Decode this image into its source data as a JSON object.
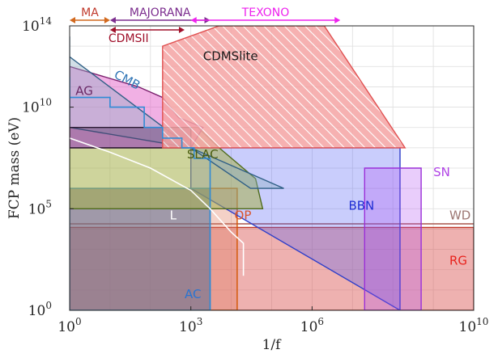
{
  "chart_data": {
    "type": "area",
    "title": "",
    "xlabel": "1/f",
    "ylabel": "FCP mass (eV)",
    "x_scale": "log",
    "y_scale": "log",
    "xlim": [
      1,
      10000000000
    ],
    "ylim": [
      1,
      100000000000000
    ],
    "grid": true,
    "x_ticks": [
      {
        "value": 1,
        "mantissa": "10",
        "exp": "0"
      },
      {
        "value": 1000,
        "mantissa": "10",
        "exp": "3"
      },
      {
        "value": 1000000,
        "mantissa": "10",
        "exp": "6"
      },
      {
        "value": 10000000000,
        "mantissa": "10",
        "exp": "10"
      }
    ],
    "y_ticks": [
      {
        "value": 1,
        "mantissa": "10",
        "exp": "0"
      },
      {
        "value": 100000,
        "mantissa": "10",
        "exp": "5"
      },
      {
        "value": 10000000000,
        "mantissa": "10",
        "exp": "10"
      },
      {
        "value": 100000000000000,
        "mantissa": "10",
        "exp": "14"
      }
    ],
    "regions": [
      {
        "name": "RG",
        "fill": "#d9534f",
        "stroke": "#c0392b",
        "opacity": 0.45,
        "points": [
          [
            1,
            1
          ],
          [
            1,
            12000
          ],
          [
            10000000000,
            12000
          ],
          [
            10000000000,
            1
          ]
        ],
        "label": {
          "text": "RG",
          "x": 2500000000,
          "y": 180,
          "color": "#e8231d"
        }
      },
      {
        "name": "WD",
        "fill": "none",
        "stroke": "#a8554c",
        "opacity": 1,
        "points": [
          [
            1,
            18000
          ],
          [
            10000000000,
            18000
          ]
        ],
        "label": {
          "text": "WD",
          "x": 2500000000,
          "y": 30000,
          "color": "#9c7672"
        }
      },
      {
        "name": "OP",
        "fill": "#e07a5f",
        "stroke": "#d35400",
        "opacity": 0.35,
        "points": [
          [
            1,
            1
          ],
          [
            1,
            1000000
          ],
          [
            14000,
            1000000
          ],
          [
            14000,
            1
          ]
        ],
        "label": {
          "text": "OP",
          "x": 12000,
          "y": 30000,
          "color": "#d9532b"
        }
      },
      {
        "name": "BBN",
        "fill": "#4d5bf5",
        "stroke": "#2f3fc9",
        "opacity": 0.3,
        "points": [
          [
            1000,
            1000000
          ],
          [
            1000,
            100000000
          ],
          [
            150000000,
            100000000
          ],
          [
            150000000,
            1
          ]
        ],
        "label": {
          "text": "BBN",
          "x": 8000000,
          "y": 90000,
          "color": "#1f2ed4"
        }
      },
      {
        "name": "SN",
        "fill": "#b04cf0",
        "stroke": "#9b30d8",
        "opacity": 0.28,
        "points": [
          [
            20000000,
            1
          ],
          [
            20000000,
            10000000
          ],
          [
            500000000,
            10000000
          ],
          [
            500000000,
            1
          ]
        ],
        "label": {
          "text": "SN",
          "x": 1000000000,
          "y": 4000000,
          "color": "#b043e6"
        }
      },
      {
        "name": "AC",
        "fill": "#5b6b8f",
        "stroke": "#2f8bd6",
        "opacity": 0.55,
        "points": [
          [
            1,
            1
          ],
          [
            1,
            1000000
          ],
          [
            3000,
            1000000
          ],
          [
            3000,
            1
          ]
        ],
        "label": {
          "text": "AC",
          "x": 700,
          "y": 4,
          "color": "#2a74d1"
        }
      },
      {
        "name": "SLAC",
        "fill": "#a6b04a",
        "stroke": "#4f6b1c",
        "opacity": 0.55,
        "points": [
          [
            1,
            100000
          ],
          [
            1,
            100000000
          ],
          [
            200,
            100000000
          ],
          [
            300,
            1000000000
          ],
          [
            1500,
            1000000000
          ],
          [
            5000,
            100000000
          ],
          [
            40000,
            3000000
          ],
          [
            60000,
            100000
          ],
          [
            1,
            100000
          ]
        ],
        "label": {
          "text": "SLAC",
          "x": 800,
          "y": 30000000,
          "color": "#4a5e10"
        }
      },
      {
        "name": "AG",
        "fill": "#e14fc4",
        "stroke": "#7a1f6d",
        "opacity": 0.45,
        "points": [
          [
            1,
            100000000
          ],
          [
            1,
            1000000000000
          ],
          [
            50,
            100000000000
          ],
          [
            200,
            30000000000
          ],
          [
            500,
            3000000000
          ],
          [
            2000,
            1000000000
          ],
          [
            1000,
            100000000
          ],
          [
            1,
            100000000
          ]
        ],
        "label": {
          "text": "AG",
          "x": 1.4,
          "y": 40000000000,
          "color": "#6a2a66"
        }
      },
      {
        "name": "CMB",
        "fill": "#8faec4",
        "stroke": "#2f5f86",
        "opacity": 0.4,
        "points": [
          [
            1,
            30000000000000
          ],
          [
            1,
            1000000000
          ],
          [
            1000,
            100000000
          ],
          [
            200000,
            1000000
          ],
          [
            30000,
            1000000
          ],
          [
            1000,
            100000000
          ],
          [
            1,
            3000000000000
          ]
        ],
        "label": {
          "text": "CMB",
          "x": 12,
          "y": 300000000000,
          "color": "#2e74b5"
        }
      },
      {
        "name": "MA-box",
        "fill": "#5a3a6a",
        "stroke": "#2b1a33",
        "opacity": 0.45,
        "points": [
          [
            1,
            1000000000
          ],
          [
            1,
            100000000
          ],
          [
            1000,
            100000000
          ],
          [
            1000,
            1000000000
          ]
        ],
        "label": null
      },
      {
        "name": "CDMSlite",
        "fill": "#f06060",
        "stroke": "#e05050",
        "opacity": 0.55,
        "hatch": true,
        "points": [
          [
            200,
            100000000
          ],
          [
            200,
            10000000000000
          ],
          [
            5000,
            100000000000000
          ],
          [
            2000000,
            100000000000000
          ],
          [
            200000000,
            100000000
          ],
          [
            200,
            100000000
          ]
        ],
        "label": {
          "text": "CDMSlite",
          "x": 2000,
          "y": 2000000000000,
          "color": "#1a1a1a"
        }
      }
    ],
    "ac_outline": [
      [
        1,
        300000000000
      ],
      [
        1,
        30000000000
      ],
      [
        10,
        30000000000
      ],
      [
        10,
        10000000000
      ],
      [
        70,
        10000000000
      ],
      [
        70,
        1000000000
      ],
      [
        200,
        1000000000
      ],
      [
        200,
        300000000
      ],
      [
        600,
        300000000
      ],
      [
        600,
        100000000
      ],
      [
        1200,
        100000000
      ],
      [
        1200,
        30000000
      ],
      [
        3000,
        30000000
      ],
      [
        3000,
        1
      ]
    ],
    "white_curve": [
      [
        1,
        300000000
      ],
      [
        10,
        60000000
      ],
      [
        100,
        10000000
      ],
      [
        1000,
        800000
      ],
      [
        3000,
        100000
      ],
      [
        10000,
        7000
      ],
      [
        20000,
        2000
      ],
      [
        20000,
        50
      ]
    ],
    "white_mark": {
      "text": "L",
      "x": 300,
      "y": 30000
    },
    "range_arrows": [
      {
        "name": "MA",
        "x0": 1,
        "x1": 10,
        "row": 0,
        "color": "#d2691e",
        "label_color": "#c0392b"
      },
      {
        "name": "MAJORANA",
        "x0": 10,
        "x1": 3000,
        "row": 0,
        "color": "#7b2d8e",
        "label_color": "#7b2d8e"
      },
      {
        "name": "TEXONO",
        "x0": 1000,
        "x1": 5000000,
        "row": 0,
        "color": "#ee22ee",
        "label_color": "#ee22ee"
      },
      {
        "name": "CDMSII",
        "x0": 10,
        "x1": 700,
        "row": 1,
        "color": "#a0102a",
        "label_color": "#a0102a"
      }
    ]
  }
}
